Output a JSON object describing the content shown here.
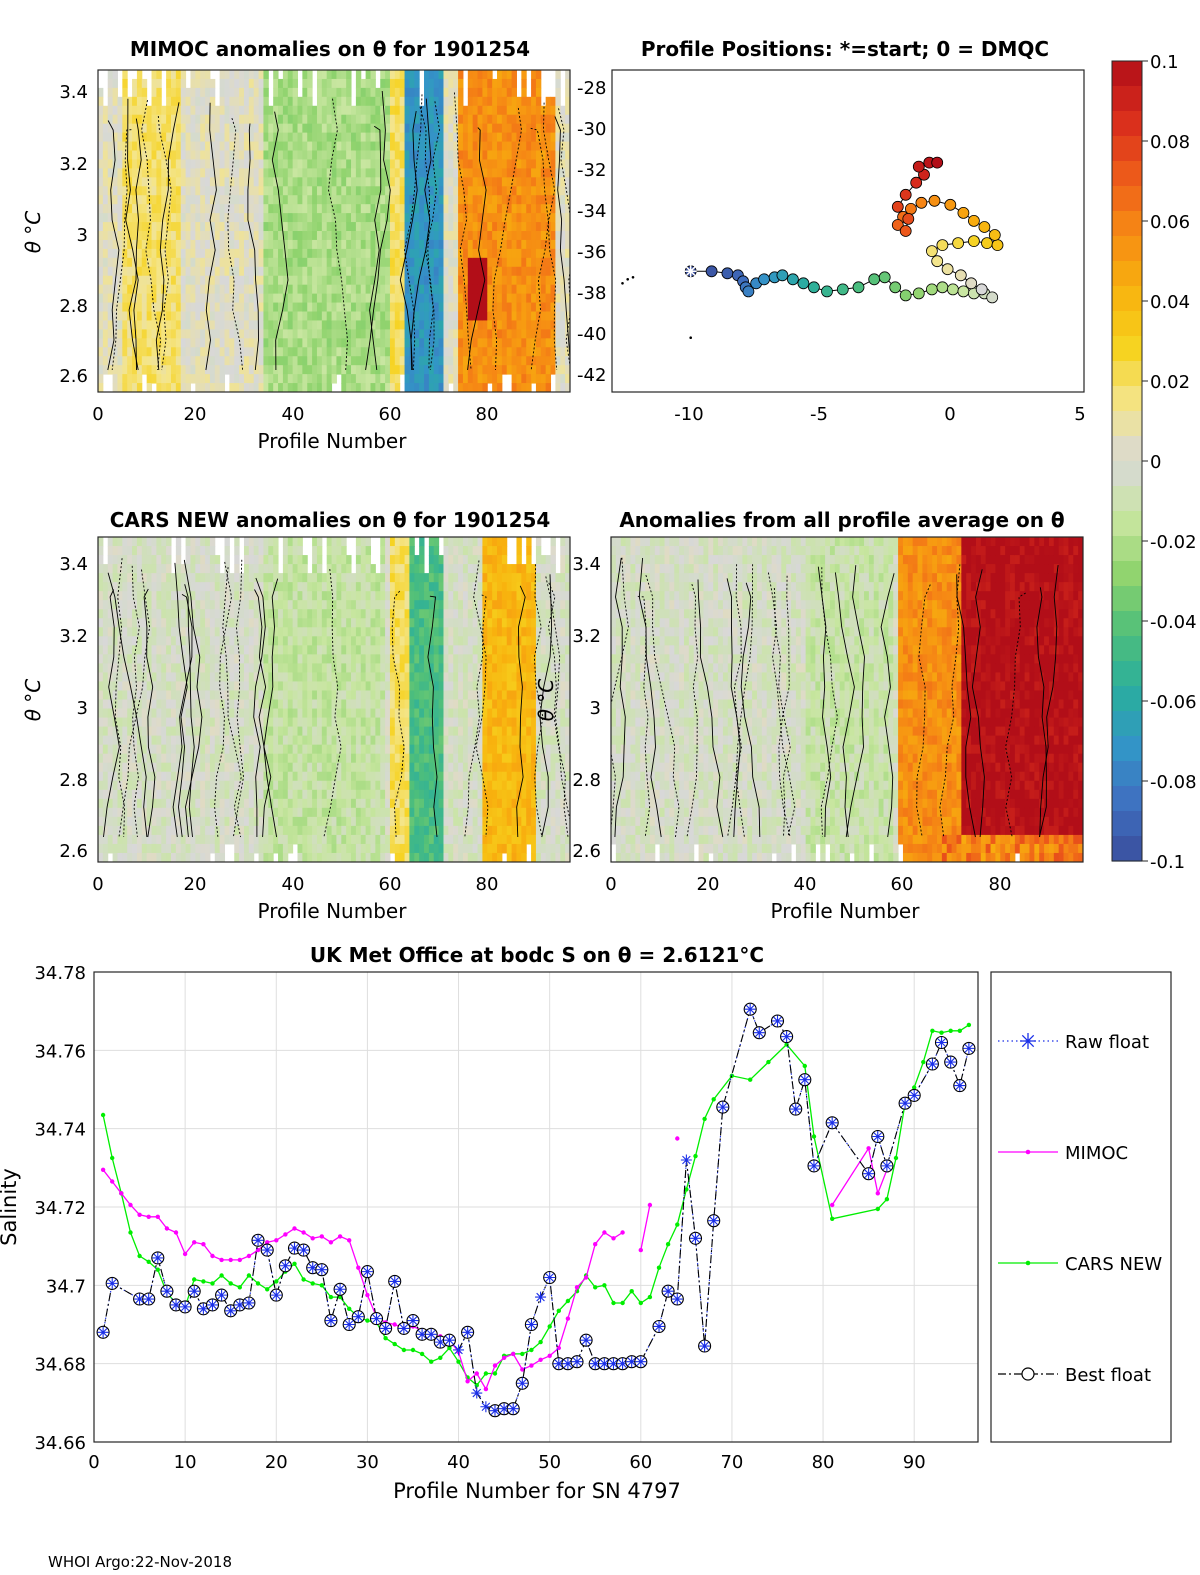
{
  "footer": "WHOI Argo:22-Nov-2018",
  "colorbar": {
    "ticks": [
      "0.1",
      "0.08",
      "0.06",
      "0.04",
      "0.02",
      "0",
      "-0.02",
      "-0.04",
      "-0.06",
      "-0.08",
      "-0.1"
    ],
    "vmin": -0.1,
    "vmax": 0.1,
    "colors": [
      "#3a4e9c",
      "#3f6fc0",
      "#3395c7",
      "#2aae9e",
      "#4fbf7a",
      "#8fd36d",
      "#c8e6a0",
      "#d8d8d8",
      "#f4e58a",
      "#f6d21e",
      "#f8b20e",
      "#f68a14",
      "#ed5a1a",
      "#d82c1c",
      "#b20e18"
    ]
  },
  "panels": {
    "mimoc": {
      "title": "MIMOC anomalies on θ  for 1901254",
      "xlabel": "Profile Number",
      "ylabel": "θ °C",
      "xticks": [
        "0",
        "20",
        "40",
        "60",
        "80"
      ],
      "yticks": [
        "2.6",
        "2.8",
        "3",
        "3.2",
        "3.4"
      ],
      "xlim": [
        0,
        97
      ],
      "ylim": [
        2.56,
        3.47
      ]
    },
    "positions": {
      "title": "Profile Positions: *=start; 0 = DMQC",
      "xticks": [
        "-10",
        "-5",
        "0",
        "5"
      ],
      "yticks": [
        "-28",
        "-30",
        "-32",
        "-34",
        "-36",
        "-38",
        "-40",
        "-42"
      ],
      "xlim": [
        -13,
        5
      ],
      "ylim": [
        -43,
        -27
      ],
      "track": [
        [
          -10,
          -37
        ],
        [
          -9.2,
          -37
        ],
        [
          -8.6,
          -37.1
        ],
        [
          -8.2,
          -37.2
        ],
        [
          -8,
          -37.5
        ],
        [
          -7.9,
          -37.8
        ],
        [
          -7.8,
          -38
        ],
        [
          -7.5,
          -37.6
        ],
        [
          -7.2,
          -37.4
        ],
        [
          -6.8,
          -37.3
        ],
        [
          -6.5,
          -37.2
        ],
        [
          -6.1,
          -37.4
        ],
        [
          -5.7,
          -37.6
        ],
        [
          -5.3,
          -37.8
        ],
        [
          -4.8,
          -38
        ],
        [
          -4.2,
          -37.9
        ],
        [
          -3.6,
          -37.8
        ],
        [
          -3,
          -37.4
        ],
        [
          -2.6,
          -37.3
        ],
        [
          -2.2,
          -37.8
        ],
        [
          -1.8,
          -38.2
        ],
        [
          -1.3,
          -38.1
        ],
        [
          -0.8,
          -37.9
        ],
        [
          -0.4,
          -37.8
        ],
        [
          0,
          -37.9
        ],
        [
          0.4,
          -38
        ],
        [
          0.8,
          -38.1
        ],
        [
          1.2,
          -38.1
        ],
        [
          1.5,
          -38.3
        ],
        [
          1.1,
          -37.9
        ],
        [
          0.7,
          -37.6
        ],
        [
          0.3,
          -37.2
        ],
        [
          -0.2,
          -36.9
        ],
        [
          -0.6,
          -36.5
        ],
        [
          -0.8,
          -36
        ],
        [
          -0.4,
          -35.7
        ],
        [
          0.2,
          -35.6
        ],
        [
          0.8,
          -35.5
        ],
        [
          1.3,
          -35.6
        ],
        [
          1.7,
          -35.7
        ],
        [
          1.6,
          -35.2
        ],
        [
          1.2,
          -34.8
        ],
        [
          0.8,
          -34.5
        ],
        [
          0.4,
          -34.1
        ],
        [
          -0.1,
          -33.7
        ],
        [
          -0.7,
          -33.5
        ],
        [
          -1.2,
          -33.6
        ],
        [
          -1.6,
          -33.9
        ],
        [
          -1.9,
          -34.3
        ],
        [
          -2.1,
          -34.7
        ],
        [
          -1.8,
          -35
        ],
        [
          -1.7,
          -34.4
        ],
        [
          -2.1,
          -33.8
        ],
        [
          -1.8,
          -33.2
        ],
        [
          -1.4,
          -32.6
        ],
        [
          -1.1,
          -32.2
        ],
        [
          -1.3,
          -31.8
        ],
        [
          -0.9,
          -31.6
        ],
        [
          -0.6,
          -31.6
        ]
      ],
      "dmqc_marks": [
        [
          -12.2,
          -37.3
        ],
        [
          -12.4,
          -37.4
        ],
        [
          -12.6,
          -37.6
        ],
        [
          -10,
          -40.3
        ]
      ],
      "start": [
        -10,
        -37
      ]
    },
    "cars": {
      "title": "CARS NEW anomalies on θ for 1901254",
      "xlabel": "Profile Number",
      "ylabel": "θ °C",
      "xticks": [
        "0",
        "20",
        "40",
        "60",
        "80"
      ],
      "yticks": [
        "2.6",
        "2.8",
        "3",
        "3.2",
        "3.4"
      ],
      "xlim": [
        0,
        97
      ],
      "ylim": [
        2.56,
        3.47
      ]
    },
    "avg": {
      "title": "Anomalies from all profile average on θ",
      "xlabel": "Profile Number",
      "ylabel": "θ °C",
      "xticks": [
        "0",
        "20",
        "40",
        "60",
        "80"
      ],
      "yticks": [
        "2.6",
        "2.8",
        "3",
        "3.2",
        "3.4"
      ],
      "xlim": [
        0,
        97
      ],
      "ylim": [
        2.56,
        3.47
      ]
    }
  },
  "chart_data": {
    "type": "line",
    "title": "UK Met Office at bodc S on θ = 2.6121°C",
    "xlabel": "Profile Number for SN 4797",
    "ylabel": "Salinity",
    "xlim": [
      0,
      97
    ],
    "ylim": [
      34.66,
      34.78
    ],
    "xticks": [
      0,
      10,
      20,
      30,
      40,
      50,
      60,
      70,
      80,
      90
    ],
    "yticks": [
      "34.66",
      "34.68",
      "34.7",
      "34.72",
      "34.74",
      "34.76",
      "34.78"
    ],
    "grid": true,
    "legend": [
      "Raw float",
      "MIMOC",
      "CARS NEW",
      "Best float"
    ],
    "series": [
      {
        "name": "Raw float",
        "color": "#1a2fe8",
        "x": [
          1,
          2,
          5,
          6,
          7,
          8,
          9,
          10,
          11,
          12,
          13,
          14,
          15,
          16,
          17,
          18,
          19,
          20,
          21,
          22,
          23,
          24,
          25,
          26,
          27,
          28,
          29,
          30,
          31,
          32,
          33,
          34,
          35,
          36,
          37,
          38,
          39,
          40,
          41,
          42,
          43,
          44,
          45,
          46,
          47,
          48,
          49,
          50,
          51,
          52,
          53,
          54,
          55,
          56,
          57,
          58,
          59,
          60,
          62,
          63,
          64,
          65,
          66,
          67,
          68,
          69,
          72,
          73,
          75,
          76,
          77,
          78,
          79,
          81,
          85,
          86,
          87,
          89,
          90,
          92,
          93,
          94,
          95,
          96
        ],
        "y": [
          34.688,
          34.7005,
          34.6965,
          34.6965,
          34.707,
          34.6985,
          34.695,
          34.6945,
          34.6985,
          34.694,
          34.695,
          34.6975,
          34.6935,
          34.695,
          34.6955,
          34.7115,
          34.709,
          34.6975,
          34.705,
          34.7095,
          34.709,
          34.7045,
          34.704,
          34.691,
          34.699,
          34.69,
          34.692,
          34.7035,
          34.6915,
          34.689,
          34.701,
          34.689,
          34.691,
          34.6875,
          34.6875,
          34.6855,
          34.686,
          34.6835,
          34.688,
          34.6725,
          34.669,
          34.668,
          34.6685,
          34.6685,
          34.675,
          34.69,
          34.697,
          34.702,
          34.68,
          34.68,
          34.6805,
          34.686,
          34.68,
          34.68,
          34.68,
          34.68,
          34.6805,
          34.6805,
          34.6895,
          34.6985,
          34.6965,
          34.732,
          34.712,
          34.6845,
          34.7165,
          34.7455,
          34.7705,
          34.7645,
          34.7675,
          34.7635,
          34.745,
          34.7525,
          34.7305,
          34.7415,
          34.7285,
          34.738,
          34.7305,
          34.7465,
          34.7485,
          34.7565,
          34.762,
          34.757,
          34.751,
          34.7605
        ]
      },
      {
        "name": "MIMOC",
        "color": "#ff00ff",
        "segments": [
          {
            "x": [
              1,
              2,
              3,
              4,
              5,
              6,
              7,
              8,
              9,
              10,
              11,
              12,
              13,
              14,
              15,
              16,
              17,
              18,
              19,
              20,
              21,
              22,
              23,
              24,
              25,
              26,
              27,
              28,
              29,
              30,
              31,
              32,
              33,
              34,
              35,
              36,
              37,
              38,
              39,
              40,
              41,
              42,
              43,
              44,
              45,
              46,
              47,
              48,
              49,
              50,
              51,
              52,
              53,
              54,
              55,
              56,
              57,
              58
            ],
            "y": [
              34.7295,
              34.7265,
              34.7235,
              34.7205,
              34.718,
              34.7175,
              34.7175,
              34.7145,
              34.7135,
              34.708,
              34.711,
              34.7105,
              34.7075,
              34.7065,
              34.7065,
              34.7065,
              34.7075,
              34.709,
              34.711,
              34.7115,
              34.713,
              34.7145,
              34.7135,
              34.712,
              34.7125,
              34.711,
              34.7125,
              34.7115,
              34.7045,
              34.6975,
              34.692,
              34.6905,
              34.69,
              34.689,
              34.6895,
              34.6885,
              34.687,
              34.687,
              34.686,
              34.683,
              34.6755,
              34.6775,
              34.6735,
              34.6795,
              34.6815,
              34.6825,
              34.6785,
              34.6795,
              34.681,
              34.682,
              34.684,
              34.6915,
              34.6995,
              34.702,
              34.7105,
              34.7135,
              34.712,
              34.7135
            ]
          },
          {
            "x": [
              60,
              61
            ],
            "y": [
              34.709,
              34.7205
            ]
          },
          {
            "x": [
              64
            ],
            "y": [
              34.7375
            ]
          },
          {
            "x": [
              81,
              85,
              86,
              87
            ],
            "y": [
              34.7205,
              34.735,
              34.7235,
              34.7295
            ]
          }
        ]
      },
      {
        "name": "CARS NEW",
        "color": "#00ee00",
        "x": [
          1,
          2,
          3,
          4,
          5,
          6,
          7,
          8,
          9,
          10,
          11,
          12,
          13,
          14,
          15,
          16,
          17,
          18,
          19,
          20,
          21,
          22,
          23,
          24,
          25,
          26,
          27,
          28,
          29,
          30,
          31,
          32,
          33,
          34,
          35,
          36,
          37,
          38,
          39,
          40,
          41,
          42,
          43,
          44,
          45,
          46,
          47,
          48,
          49,
          50,
          51,
          52,
          53,
          54,
          55,
          56,
          57,
          58,
          59,
          60,
          61,
          62,
          63,
          64,
          65,
          66,
          67,
          68,
          70,
          72,
          74,
          76,
          78,
          79,
          81,
          86,
          87,
          88,
          89,
          90,
          91,
          92,
          93,
          94,
          95,
          96
        ],
        "y": [
          34.7435,
          34.7325,
          34.7235,
          34.7135,
          34.7075,
          34.706,
          34.704,
          34.698,
          34.6955,
          34.6945,
          34.7015,
          34.701,
          34.7005,
          34.7025,
          34.7005,
          34.6995,
          34.7025,
          34.7005,
          34.699,
          34.701,
          34.7035,
          34.7055,
          34.7015,
          34.7005,
          34.7,
          34.697,
          34.697,
          34.694,
          34.692,
          34.691,
          34.6905,
          34.6865,
          34.685,
          34.6835,
          34.6835,
          34.6825,
          34.6805,
          34.6815,
          34.684,
          34.6805,
          34.6765,
          34.6745,
          34.6775,
          34.6775,
          34.682,
          34.6825,
          34.6825,
          34.6835,
          34.6855,
          34.6895,
          34.6935,
          34.696,
          34.6985,
          34.7025,
          34.6995,
          34.7,
          34.6955,
          34.6955,
          34.6985,
          34.6955,
          34.697,
          34.7045,
          34.7105,
          34.7155,
          34.7245,
          34.733,
          34.7425,
          34.7475,
          34.7535,
          34.7525,
          34.757,
          34.7615,
          34.756,
          34.738,
          34.717,
          34.7195,
          34.722,
          34.7325,
          34.7465,
          34.7505,
          34.757,
          34.765,
          34.7645,
          34.765,
          34.765,
          34.7665
        ]
      }
    ]
  }
}
